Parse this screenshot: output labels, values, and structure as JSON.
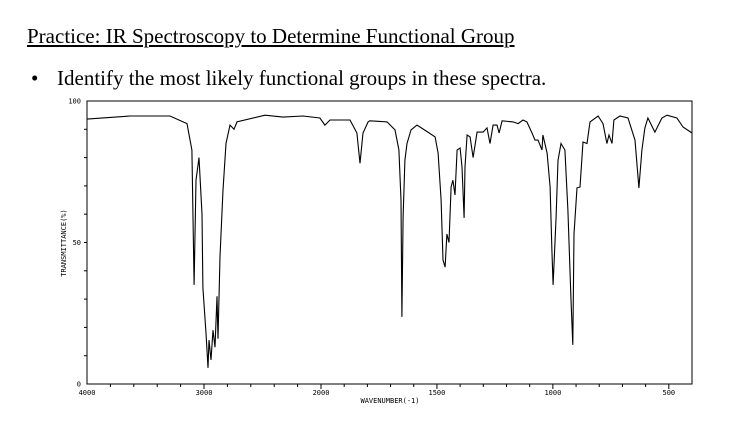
{
  "slide": {
    "title": "Practice: IR Spectroscopy to Determine Functional Group",
    "bullet_symbol": "•",
    "bullet_text": "Identify the most likely functional groups in these spectra."
  },
  "chart_data": {
    "type": "line",
    "title": "",
    "xlabel": "WAVENUMBER(-1)",
    "ylabel": "TRANSMITTANCE(%)",
    "xlim": [
      4000,
      400
    ],
    "x_scale_break": 2000,
    "ylim": [
      0,
      100
    ],
    "grid": false,
    "line_color": "#000000",
    "x_ticks": [
      4000,
      3000,
      2000,
      1500,
      1000,
      500
    ],
    "x_tick_labels": [
      "4000",
      "3000",
      "2000",
      "1500",
      "1000",
      "500"
    ],
    "y_ticks": [
      0,
      50,
      100
    ],
    "y_tick_labels": [
      "0",
      "50",
      "100"
    ],
    "points": [
      [
        4000,
        93.6
      ],
      [
        3632,
        94.7
      ],
      [
        3291,
        94.7
      ],
      [
        3145,
        92
      ],
      [
        3103,
        82.7
      ],
      [
        3085,
        35
      ],
      [
        3068,
        72
      ],
      [
        3043,
        80
      ],
      [
        3017,
        60
      ],
      [
        3009,
        34
      ],
      [
        2983,
        18
      ],
      [
        2966,
        5.7
      ],
      [
        2957,
        15.5
      ],
      [
        2940,
        8.5
      ],
      [
        2923,
        19
      ],
      [
        2906,
        13
      ],
      [
        2889,
        31
      ],
      [
        2880,
        16
      ],
      [
        2863,
        45
      ],
      [
        2838,
        68.5
      ],
      [
        2812,
        85
      ],
      [
        2778,
        91.5
      ],
      [
        2744,
        90
      ],
      [
        2718,
        92.6
      ],
      [
        2479,
        95
      ],
      [
        2325,
        94.3
      ],
      [
        2154,
        94.7
      ],
      [
        2009,
        94
      ],
      [
        1983,
        91.5
      ],
      [
        1961,
        93.3
      ],
      [
        1875,
        93.3
      ],
      [
        1845,
        88.7
      ],
      [
        1832,
        78
      ],
      [
        1819,
        88.7
      ],
      [
        1797,
        92.6
      ],
      [
        1789,
        93
      ],
      [
        1715,
        92.6
      ],
      [
        1681,
        89.8
      ],
      [
        1664,
        82.7
      ],
      [
        1655,
        65
      ],
      [
        1651,
        23.7
      ],
      [
        1646,
        59
      ],
      [
        1638,
        79
      ],
      [
        1629,
        85
      ],
      [
        1612,
        89.8
      ],
      [
        1586,
        91.5
      ],
      [
        1539,
        89
      ],
      [
        1508,
        87.3
      ],
      [
        1495,
        81.6
      ],
      [
        1482,
        65
      ],
      [
        1474,
        43.8
      ],
      [
        1465,
        41.3
      ],
      [
        1457,
        53
      ],
      [
        1448,
        50
      ],
      [
        1439,
        69.6
      ],
      [
        1431,
        72
      ],
      [
        1422,
        66.8
      ],
      [
        1413,
        82.7
      ],
      [
        1400,
        83.4
      ],
      [
        1392,
        76.7
      ],
      [
        1383,
        58.7
      ],
      [
        1379,
        76.7
      ],
      [
        1370,
        88
      ],
      [
        1357,
        87.3
      ],
      [
        1344,
        80
      ],
      [
        1327,
        89
      ],
      [
        1301,
        89
      ],
      [
        1284,
        90.5
      ],
      [
        1271,
        85
      ],
      [
        1258,
        91.5
      ],
      [
        1241,
        91.5
      ],
      [
        1232,
        88.7
      ],
      [
        1219,
        93
      ],
      [
        1172,
        92.6
      ],
      [
        1150,
        92
      ],
      [
        1129,
        93.3
      ],
      [
        1112,
        92.6
      ],
      [
        1090,
        88.7
      ],
      [
        1077,
        86.2
      ],
      [
        1064,
        86.2
      ],
      [
        1047,
        82.7
      ],
      [
        1043,
        88
      ],
      [
        1025,
        81.6
      ],
      [
        1012,
        69.6
      ],
      [
        1004,
        47.3
      ],
      [
        999,
        35
      ],
      [
        986,
        59
      ],
      [
        978,
        79
      ],
      [
        965,
        85
      ],
      [
        948,
        82.7
      ],
      [
        935,
        61.5
      ],
      [
        922,
        29.7
      ],
      [
        914,
        13.8
      ],
      [
        909,
        53
      ],
      [
        896,
        69.3
      ],
      [
        883,
        69.6
      ],
      [
        870,
        85.5
      ],
      [
        853,
        85
      ],
      [
        840,
        92.6
      ],
      [
        805,
        94.7
      ],
      [
        784,
        92
      ],
      [
        767,
        85
      ],
      [
        758,
        88
      ],
      [
        745,
        85
      ],
      [
        737,
        93.3
      ],
      [
        711,
        94.7
      ],
      [
        676,
        94
      ],
      [
        646,
        86.2
      ],
      [
        629,
        69.3
      ],
      [
        616,
        82.7
      ],
      [
        603,
        90.5
      ],
      [
        590,
        94
      ],
      [
        560,
        89
      ],
      [
        530,
        94
      ],
      [
        508,
        95
      ],
      [
        465,
        94
      ],
      [
        439,
        90.8
      ],
      [
        400,
        88.7
      ]
    ]
  }
}
